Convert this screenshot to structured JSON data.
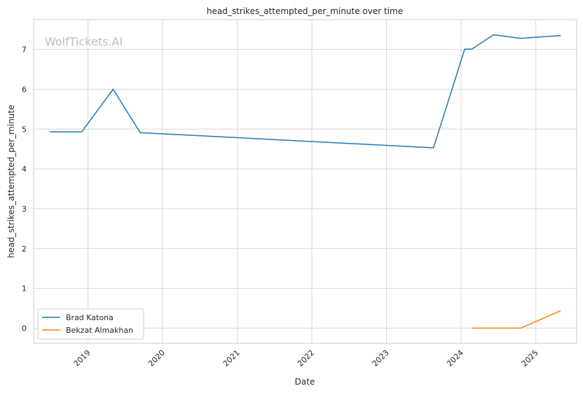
{
  "chart_data": {
    "type": "line",
    "title": "head_strikes_attempted_per_minute over time",
    "xlabel": "Date",
    "ylabel": "head_strikes_attempted_per_minute",
    "watermark": "WolfTickets.AI",
    "x_ticks": [
      "2019",
      "2020",
      "2021",
      "2022",
      "2023",
      "2024",
      "2025"
    ],
    "y_ticks": [
      0,
      1,
      2,
      3,
      4,
      5,
      6,
      7
    ],
    "ylim": [
      -0.38,
      7.75
    ],
    "xlim": [
      "2018-04-10",
      "2025-07-20"
    ],
    "grid": true,
    "legend_position": "lower-left",
    "series": [
      {
        "name": "Brad Katona",
        "color": "#1f77b4",
        "points": [
          {
            "x": "2018-06-29",
            "y": 4.93
          },
          {
            "x": "2018-12-01",
            "y": 4.93
          },
          {
            "x": "2019-05-04",
            "y": 6.0
          },
          {
            "x": "2019-09-14",
            "y": 4.91
          },
          {
            "x": "2023-08-19",
            "y": 4.53
          },
          {
            "x": "2024-01-19",
            "y": 7.01
          },
          {
            "x": "2024-02-23",
            "y": 7.01
          },
          {
            "x": "2024-06-08",
            "y": 7.37
          },
          {
            "x": "2024-10-19",
            "y": 7.28
          },
          {
            "x": "2025-05-03",
            "y": 7.35
          }
        ]
      },
      {
        "name": "Bekzat Almakhan",
        "color": "#ff7f0e",
        "points": [
          {
            "x": "2024-02-24",
            "y": 0.0
          },
          {
            "x": "2024-10-19",
            "y": 0.0
          },
          {
            "x": "2025-05-03",
            "y": 0.44
          }
        ]
      }
    ]
  }
}
